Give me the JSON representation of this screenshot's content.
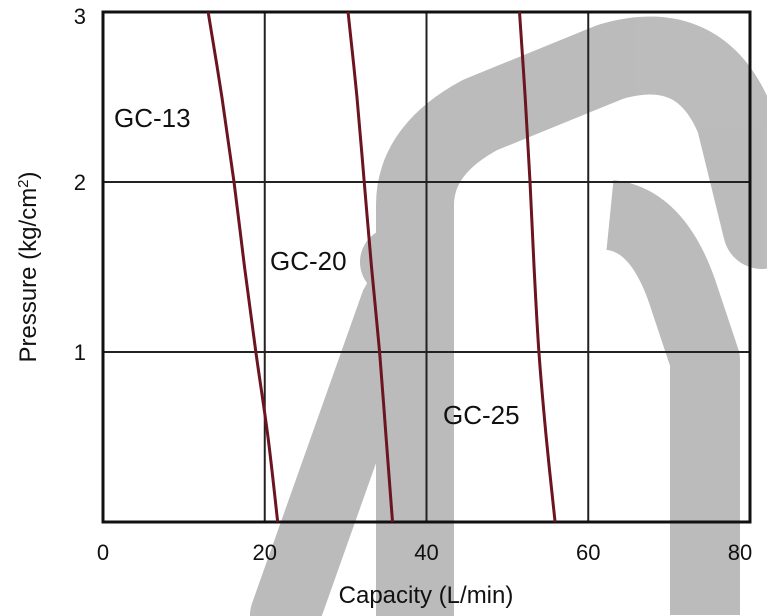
{
  "chart_data": {
    "type": "line",
    "xlabel": "Capacity (L/min)",
    "ylabel_main": "Pressure (kg/cm",
    "ylabel_sup": "2",
    "ylabel_close": ")",
    "xlim": [
      0,
      80
    ],
    "ylim": [
      0,
      3
    ],
    "xticks": [
      0,
      20,
      40,
      60,
      80
    ],
    "yticks": [
      1,
      2,
      3
    ],
    "grid": true,
    "series": [
      {
        "name": "GC-13",
        "points": [
          [
            13,
            3
          ],
          [
            14.7,
            2.5
          ],
          [
            16.2,
            2
          ],
          [
            17.5,
            1.5
          ],
          [
            18.9,
            1
          ],
          [
            20.4,
            0.5
          ],
          [
            21.6,
            0
          ]
        ]
      },
      {
        "name": "GC-20",
        "points": [
          [
            30.3,
            3
          ],
          [
            31.4,
            2.5
          ],
          [
            32.3,
            2
          ],
          [
            33.2,
            1.5
          ],
          [
            34.2,
            1
          ],
          [
            35,
            0.5
          ],
          [
            35.8,
            0
          ]
        ]
      },
      {
        "name": "GC-25",
        "points": [
          [
            51.5,
            3
          ],
          [
            52.2,
            2.5
          ],
          [
            52.8,
            2
          ],
          [
            53.3,
            1.5
          ],
          [
            53.9,
            1
          ],
          [
            54.8,
            0.5
          ],
          [
            55.9,
            0
          ]
        ]
      }
    ],
    "colors": {
      "curve": "#6b1520",
      "grid": "#222222",
      "watermark": "#b0b0b0"
    }
  }
}
